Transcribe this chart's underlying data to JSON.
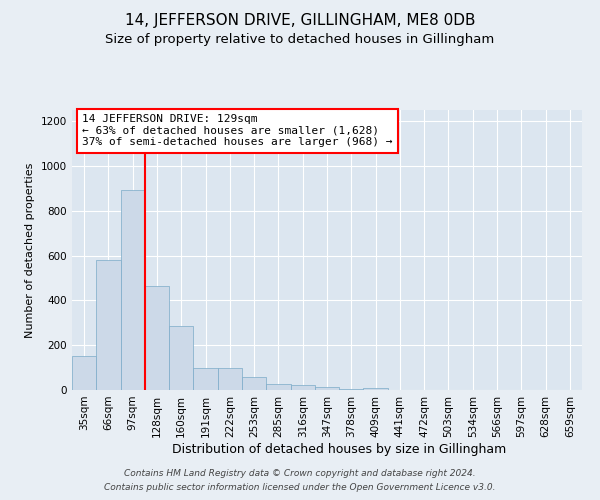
{
  "title": "14, JEFFERSON DRIVE, GILLINGHAM, ME8 0DB",
  "subtitle": "Size of property relative to detached houses in Gillingham",
  "xlabel": "Distribution of detached houses by size in Gillingham",
  "ylabel": "Number of detached properties",
  "categories": [
    "35sqm",
    "66sqm",
    "97sqm",
    "128sqm",
    "160sqm",
    "191sqm",
    "222sqm",
    "253sqm",
    "285sqm",
    "316sqm",
    "347sqm",
    "378sqm",
    "409sqm",
    "441sqm",
    "472sqm",
    "503sqm",
    "534sqm",
    "566sqm",
    "597sqm",
    "628sqm",
    "659sqm"
  ],
  "values": [
    152,
    580,
    893,
    465,
    285,
    100,
    98,
    58,
    28,
    22,
    12,
    5,
    10,
    0,
    0,
    0,
    0,
    0,
    0,
    0,
    0
  ],
  "bar_color": "#ccd9e8",
  "bar_edge_color": "#7aaac8",
  "vline_color": "red",
  "vline_x_idx": 3,
  "annotation_text": "14 JEFFERSON DRIVE: 129sqm\n← 63% of detached houses are smaller (1,628)\n37% of semi-detached houses are larger (968) →",
  "annotation_box_color": "white",
  "annotation_box_edge_color": "red",
  "ylim": [
    0,
    1250
  ],
  "yticks": [
    0,
    200,
    400,
    600,
    800,
    1000,
    1200
  ],
  "background_color": "#e8eef4",
  "plot_background_color": "#dce6f0",
  "footer_line1": "Contains HM Land Registry data © Crown copyright and database right 2024.",
  "footer_line2": "Contains public sector information licensed under the Open Government Licence v3.0.",
  "title_fontsize": 11,
  "subtitle_fontsize": 9.5,
  "xlabel_fontsize": 9,
  "ylabel_fontsize": 8,
  "tick_fontsize": 7.5,
  "footer_fontsize": 6.5,
  "annotation_fontsize": 8
}
